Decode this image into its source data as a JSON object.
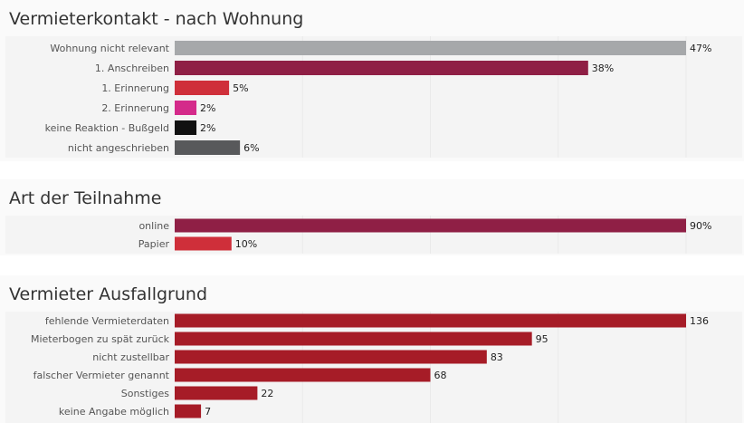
{
  "chart_data": [
    {
      "type": "bar",
      "orientation": "horizontal",
      "title": "Vermieterkontakt - nach Wohnung",
      "categories": [
        "Wohnung nicht relevant",
        "1. Anschreiben",
        "1. Erinnerung",
        "2. Erinnerung",
        "keine Reaktion - Bußgeld",
        "nicht angeschrieben"
      ],
      "values": [
        47,
        38,
        5,
        2,
        2,
        6
      ],
      "value_labels": [
        "47%",
        "38%",
        "5%",
        "2%",
        "2%",
        "6%"
      ],
      "colors": [
        "#a6a8aa",
        "#8f1f45",
        "#cf2f3a",
        "#d42a8a",
        "#111111",
        "#58595b"
      ],
      "xlim": [
        0,
        47
      ],
      "unit": "%"
    },
    {
      "type": "bar",
      "orientation": "horizontal",
      "title": "Art der Teilnahme",
      "categories": [
        "online",
        "Papier"
      ],
      "values": [
        90,
        10
      ],
      "value_labels": [
        "90%",
        "10%"
      ],
      "colors": [
        "#8f1f45",
        "#cf2f3a"
      ],
      "xlim": [
        0,
        90
      ],
      "unit": "%"
    },
    {
      "type": "bar",
      "orientation": "horizontal",
      "title": "Vermieter Ausfallgrund",
      "categories": [
        "fehlende Vermieterdaten",
        "Mieterbogen zu spät zurück",
        "nicht zustellbar",
        "falscher Vermieter genannt",
        "Sonstiges",
        "keine Angabe möglich"
      ],
      "values": [
        136,
        95,
        83,
        68,
        22,
        7
      ],
      "value_labels": [
        "136",
        "95",
        "83",
        "68",
        "22",
        "7"
      ],
      "colors": [
        "#a61c27",
        "#a61c27",
        "#a61c27",
        "#a61c27",
        "#a61c27",
        "#a61c27"
      ],
      "xlim": [
        0,
        136
      ],
      "unit": ""
    }
  ]
}
